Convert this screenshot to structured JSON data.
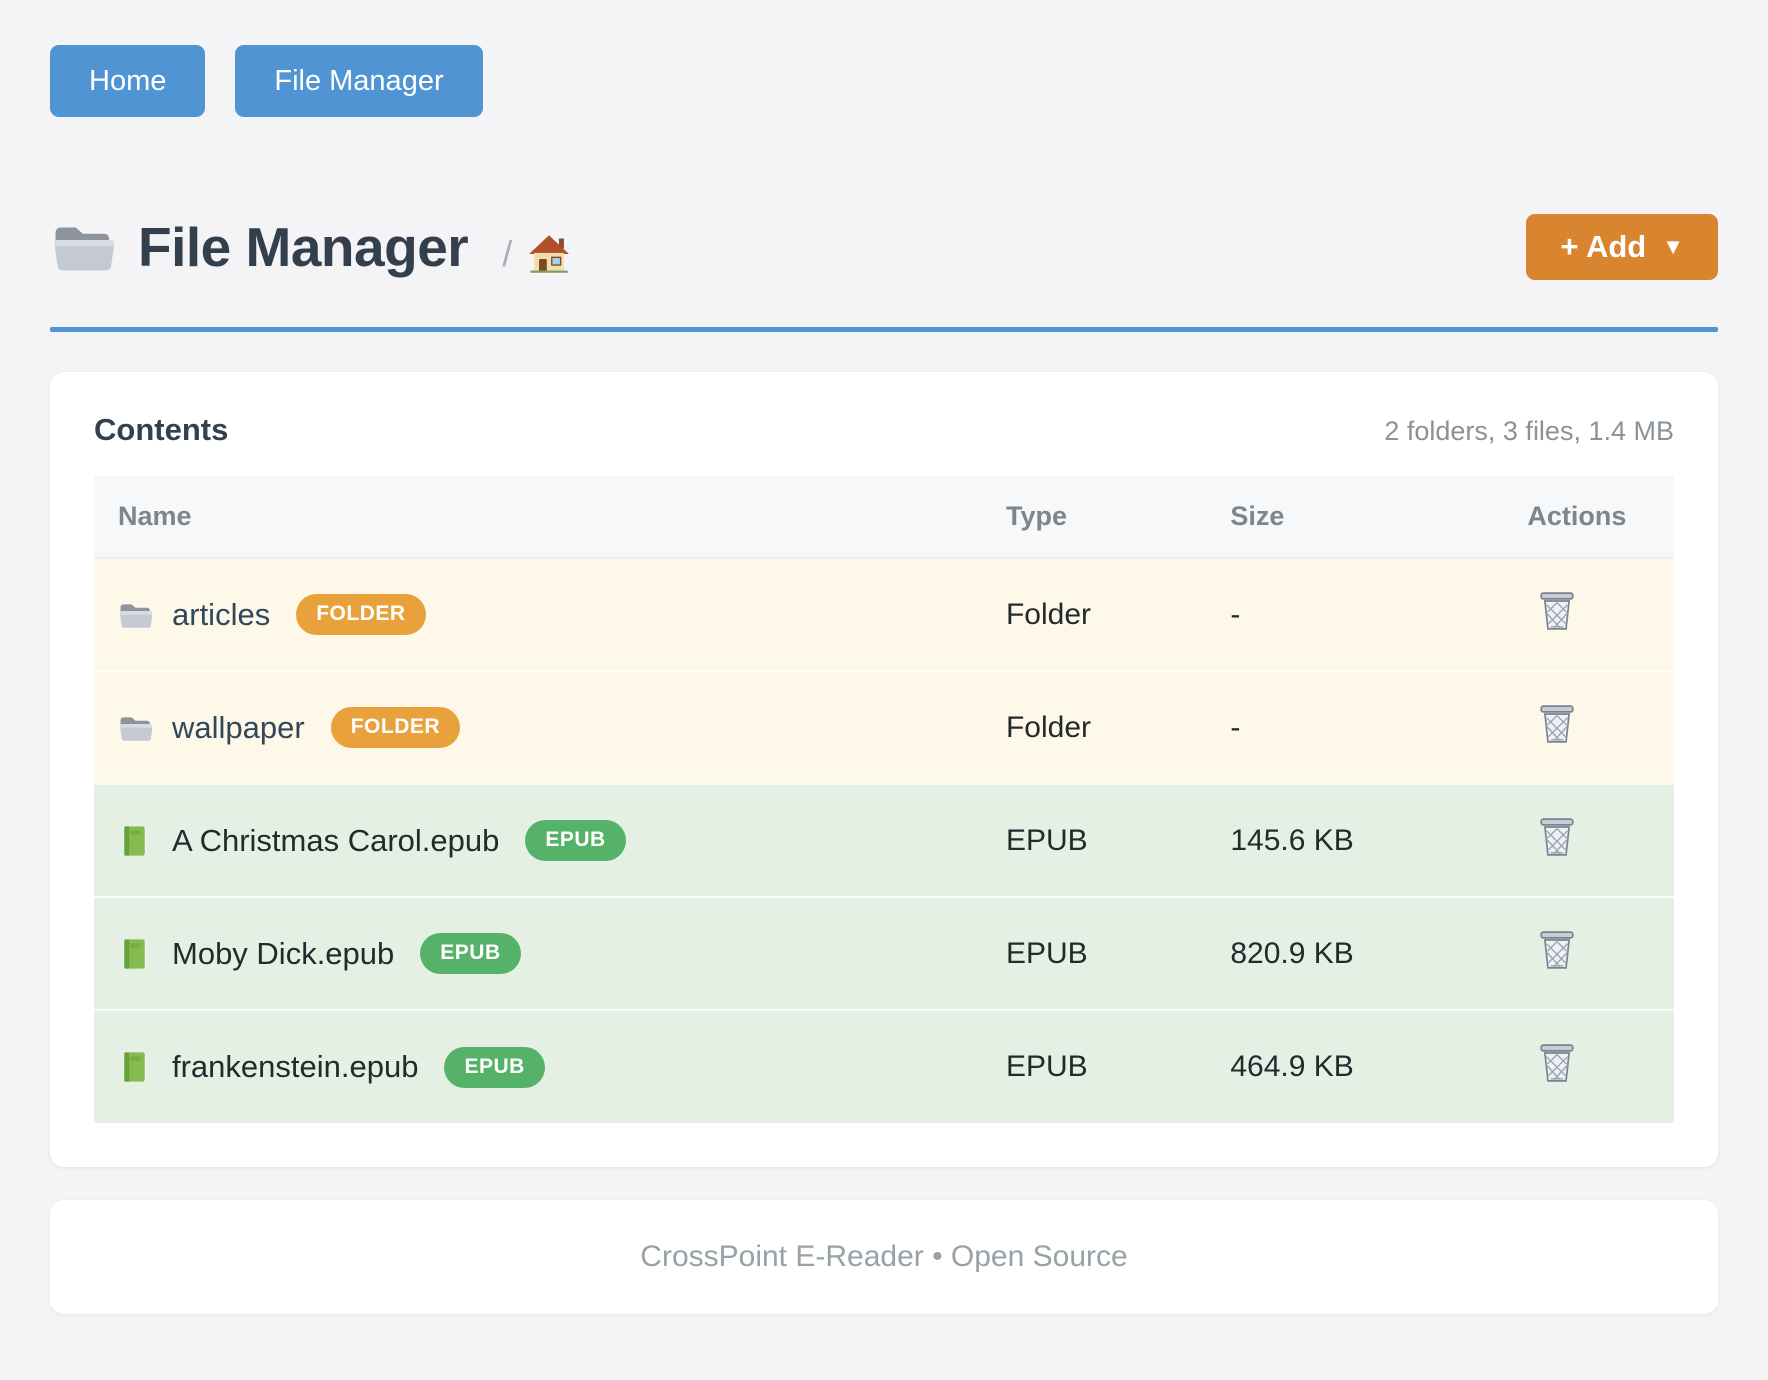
{
  "nav": {
    "buttons": [
      {
        "label": "Home"
      },
      {
        "label": "File Manager"
      }
    ]
  },
  "header": {
    "title_icon": "folder-icon",
    "title": "File Manager",
    "breadcrumb_separator": "/",
    "breadcrumb_home_icon": "house-icon",
    "add_button": {
      "label": "+ Add",
      "caret": "▼"
    }
  },
  "contents": {
    "title": "Contents",
    "summary": "2 folders, 3 files, 1.4 MB",
    "columns": [
      "Name",
      "Type",
      "Size",
      "Actions"
    ],
    "action_icon": "trash-icon",
    "rows": [
      {
        "icon": "folder-icon",
        "name": "articles",
        "badge": "FOLDER",
        "type": "Folder",
        "size": "-",
        "kind": "folder"
      },
      {
        "icon": "folder-icon",
        "name": "wallpaper",
        "badge": "FOLDER",
        "type": "Folder",
        "size": "-",
        "kind": "folder"
      },
      {
        "icon": "book-icon",
        "name": "A Christmas Carol.epub",
        "badge": "EPUB",
        "type": "EPUB",
        "size": "145.6 KB",
        "kind": "file"
      },
      {
        "icon": "book-icon",
        "name": "Moby Dick.epub",
        "badge": "EPUB",
        "type": "EPUB",
        "size": "820.9 KB",
        "kind": "file"
      },
      {
        "icon": "book-icon",
        "name": "frankenstein.epub",
        "badge": "EPUB",
        "type": "EPUB",
        "size": "464.9 KB",
        "kind": "file"
      }
    ]
  },
  "footer": {
    "text": "CrossPoint E-Reader • Open Source"
  },
  "colors": {
    "accent_blue": "#5094d4",
    "accent_orange": "#d9842f",
    "badge_folder": "#e9a23b",
    "badge_file": "#57b269",
    "row_folder_bg": "#fdf8e7",
    "row_file_bg": "#e4f0e4",
    "title_text": "#333f4d"
  }
}
